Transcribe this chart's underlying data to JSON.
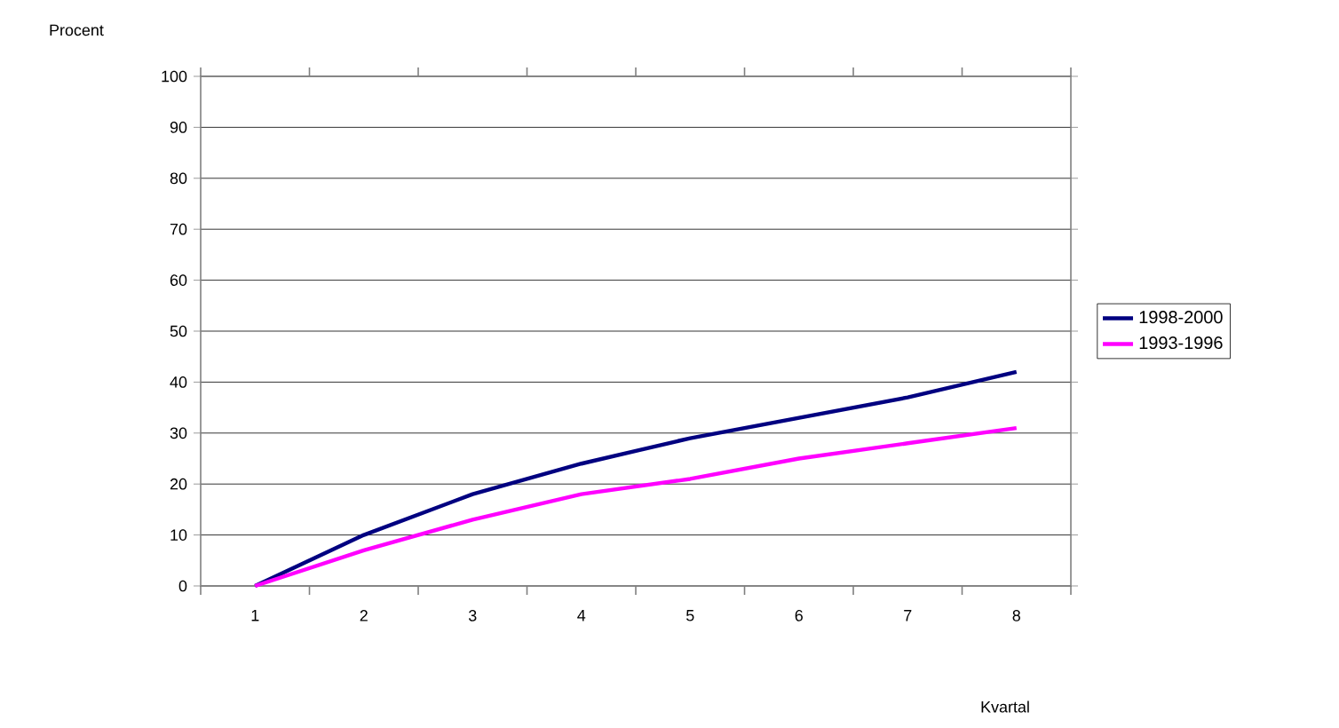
{
  "chart_data": {
    "type": "line",
    "ylabel": "Procent",
    "xlabel": "Kvartal",
    "categories": [
      "1",
      "2",
      "3",
      "4",
      "5",
      "6",
      "7",
      "8"
    ],
    "series": [
      {
        "name": "1998-2000",
        "color": "#000080",
        "values": [
          0,
          10,
          18,
          24,
          29,
          33,
          37,
          42
        ]
      },
      {
        "name": "1993-1996",
        "color": "#ff00ff",
        "values": [
          0,
          7,
          13,
          18,
          21,
          25,
          28,
          31
        ]
      }
    ],
    "ylim": [
      0,
      100
    ],
    "yticks": [
      0,
      10,
      20,
      30,
      40,
      50,
      60,
      70,
      80,
      90,
      100
    ],
    "grid": "y",
    "legend": "right",
    "marker": "none",
    "line_style": "solid"
  }
}
